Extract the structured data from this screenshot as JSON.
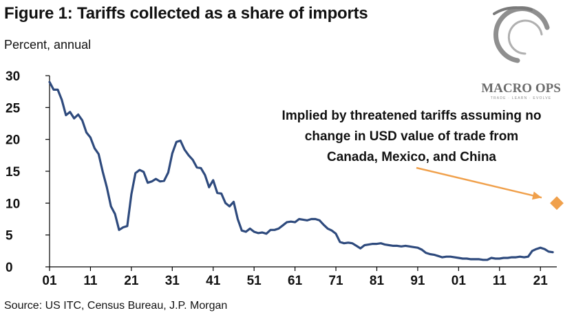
{
  "title": "Figure 1: Tariffs collected as a share of imports",
  "subtitle": "Percent, annual",
  "source": "Source: US ITC, Census Bureau, J.P. Morgan",
  "logo": {
    "text": "MACRO OPS",
    "tagline": "TRADE · LEARN · EVOLVE"
  },
  "colors": {
    "line": "#2e4a7d",
    "marker": "#f0a04b",
    "arrow": "#f0a04b",
    "axis": "#000000"
  },
  "chart_data": {
    "type": "line",
    "title": "Figure 1: Tariffs collected as a share of imports",
    "ylabel": "Percent, annual",
    "xlabel": "",
    "ylim": [
      0,
      30
    ],
    "xlim": [
      1901,
      2025
    ],
    "yticks": [
      0,
      5,
      10,
      15,
      20,
      25,
      30
    ],
    "xtick_labels": [
      "01",
      "11",
      "21",
      "31",
      "41",
      "51",
      "61",
      "71",
      "81",
      "91",
      "01",
      "11",
      "21"
    ],
    "xtick_years": [
      1901,
      1911,
      1921,
      1931,
      1941,
      1951,
      1961,
      1971,
      1981,
      1991,
      2001,
      2011,
      2021
    ],
    "grid": false,
    "series": [
      {
        "x": [
          1901,
          1902,
          1903,
          1904,
          1905,
          1906,
          1907,
          1908,
          1909,
          1910,
          1911,
          1912,
          1913,
          1914,
          1915,
          1916,
          1917,
          1918,
          1919,
          1920,
          1921,
          1922,
          1923,
          1924,
          1925,
          1926,
          1927,
          1928,
          1929,
          1930,
          1931,
          1932,
          1933,
          1934,
          1935,
          1936,
          1937,
          1938,
          1939,
          1940,
          1941,
          1942,
          1943,
          1944,
          1945,
          1946,
          1947,
          1948,
          1949,
          1950,
          1951,
          1952,
          1953,
          1954,
          1955,
          1956,
          1957,
          1958,
          1959,
          1960,
          1961,
          1962,
          1963,
          1964,
          1965,
          1966,
          1967,
          1968,
          1969,
          1970,
          1971,
          1972,
          1973,
          1974,
          1975,
          1976,
          1977,
          1978,
          1979,
          1980,
          1981,
          1982,
          1983,
          1984,
          1985,
          1986,
          1987,
          1988,
          1989,
          1990,
          1991,
          1992,
          1993,
          1994,
          1995,
          1996,
          1997,
          1998,
          1999,
          2000,
          2001,
          2002,
          2003,
          2004,
          2005,
          2006,
          2007,
          2008,
          2009,
          2010,
          2011,
          2012,
          2013,
          2014,
          2015,
          2016,
          2017,
          2018,
          2019,
          2020,
          2021,
          2022,
          2023,
          2024
        ],
        "y": [
          29.0,
          27.8,
          27.8,
          26.2,
          23.8,
          24.3,
          23.3,
          23.9,
          23.0,
          21.1,
          20.3,
          18.6,
          17.7,
          14.9,
          12.5,
          9.5,
          8.3,
          5.8,
          6.2,
          6.4,
          11.4,
          14.7,
          15.2,
          14.9,
          13.2,
          13.4,
          13.8,
          13.4,
          13.5,
          14.8,
          17.8,
          19.6,
          19.8,
          18.4,
          17.5,
          16.8,
          15.6,
          15.5,
          14.4,
          12.5,
          13.6,
          11.6,
          11.5,
          10.0,
          9.5,
          10.2,
          7.5,
          5.7,
          5.5,
          6.0,
          5.5,
          5.3,
          5.4,
          5.2,
          5.8,
          5.8,
          6.0,
          6.5,
          7.0,
          7.1,
          7.0,
          7.5,
          7.4,
          7.3,
          7.5,
          7.5,
          7.3,
          6.6,
          6.0,
          5.7,
          5.2,
          3.9,
          3.7,
          3.8,
          3.7,
          3.3,
          2.9,
          3.4,
          3.5,
          3.6,
          3.6,
          3.7,
          3.5,
          3.4,
          3.3,
          3.3,
          3.2,
          3.3,
          3.2,
          3.1,
          3.0,
          2.7,
          2.2,
          2.0,
          1.9,
          1.7,
          1.5,
          1.6,
          1.6,
          1.5,
          1.4,
          1.3,
          1.3,
          1.2,
          1.2,
          1.2,
          1.1,
          1.1,
          1.4,
          1.3,
          1.3,
          1.4,
          1.4,
          1.5,
          1.5,
          1.6,
          1.5,
          1.6,
          2.5,
          2.8,
          3.0,
          2.8,
          2.4,
          2.3
        ]
      }
    ],
    "highlight_point": {
      "x": 2025,
      "y": 10.0
    },
    "annotation": [
      "Implied by threatened tariffs assuming no",
      "change in USD value of trade from",
      "Canada, Mexico, and China"
    ]
  }
}
